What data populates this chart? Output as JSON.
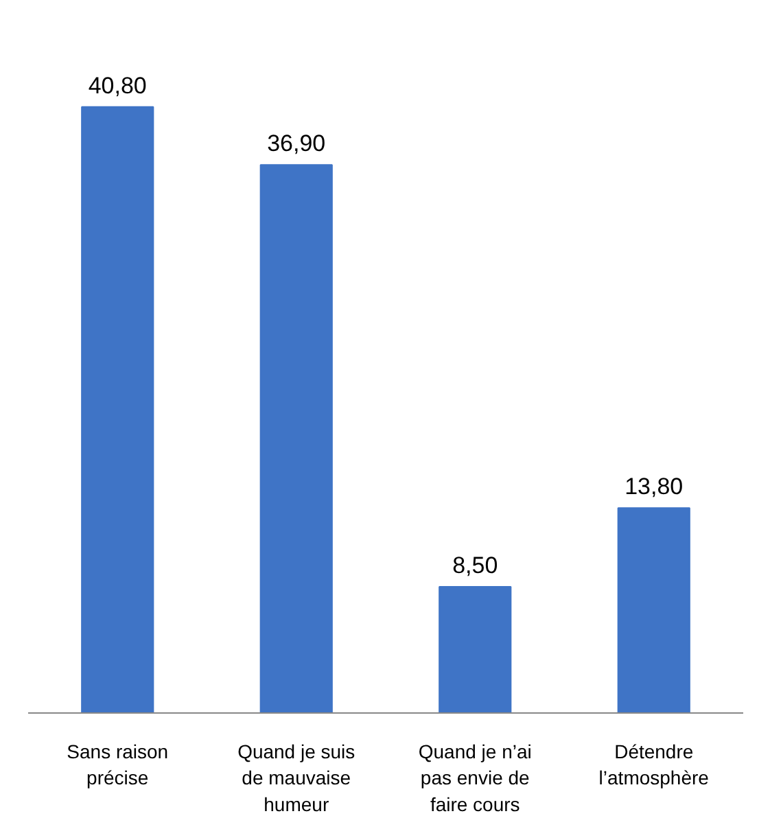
{
  "chart_data": {
    "type": "bar",
    "categories": [
      "Sans raison précise",
      "Quand je suis de mauvaise humeur",
      "Quand je n’ai pas envie de faire cours",
      "Détendre l’atmosphère"
    ],
    "values": [
      40.8,
      36.9,
      8.5,
      13.8
    ],
    "value_labels": [
      "40,80",
      "36,90",
      "8,50",
      "13,80"
    ],
    "color": "#3f74c6"
  }
}
